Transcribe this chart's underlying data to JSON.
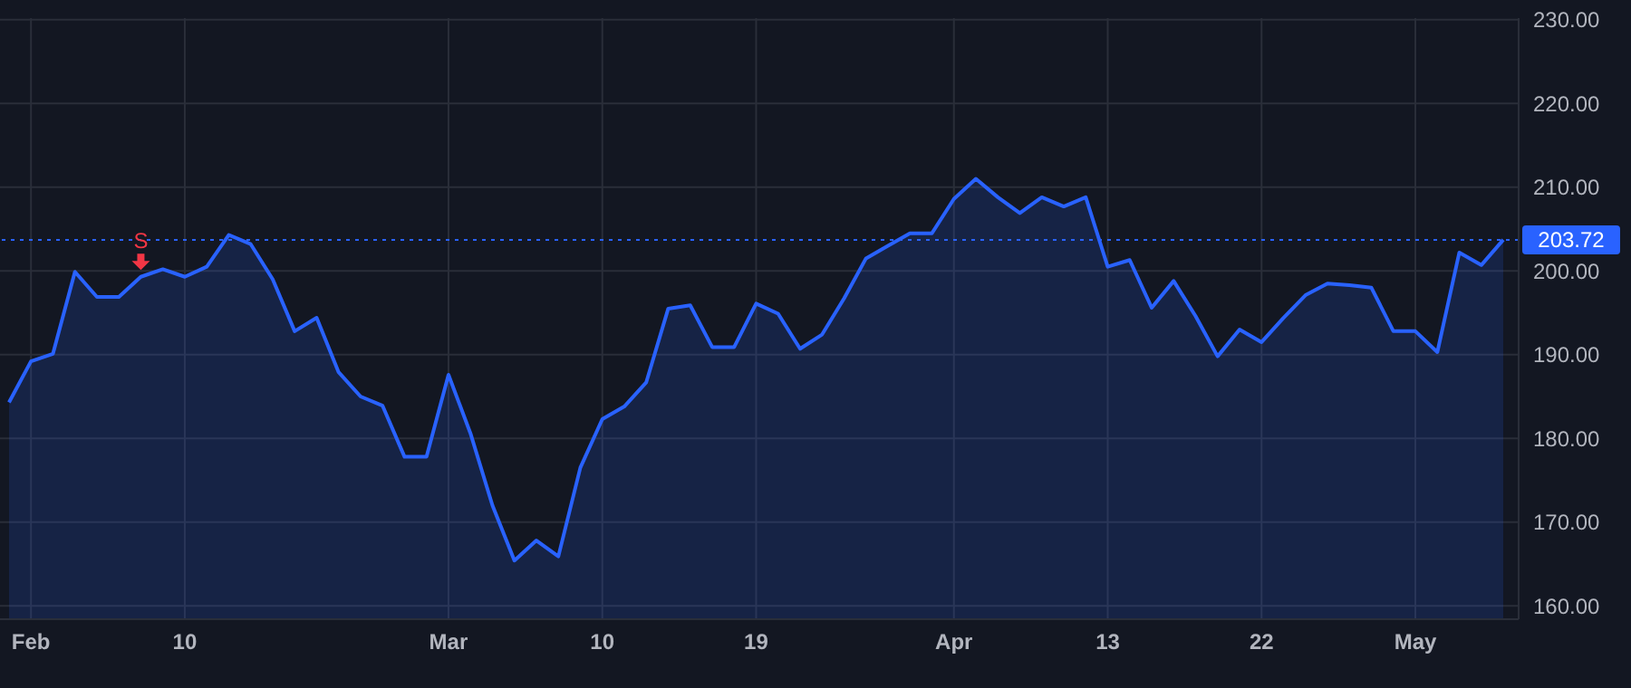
{
  "chart_data": {
    "type": "area",
    "categories": [
      null,
      "Feb",
      null,
      null,
      null,
      null,
      null,
      null,
      "10",
      null,
      null,
      null,
      null,
      null,
      null,
      null,
      null,
      null,
      null,
      null,
      "Mar",
      null,
      null,
      null,
      null,
      null,
      null,
      "10",
      null,
      null,
      null,
      null,
      null,
      null,
      "19",
      null,
      null,
      null,
      null,
      null,
      null,
      null,
      null,
      "Apr",
      null,
      null,
      null,
      null,
      null,
      null,
      "13",
      null,
      null,
      null,
      null,
      null,
      null,
      "22",
      null,
      null,
      null,
      null,
      null,
      null,
      "May",
      null,
      null,
      null,
      null
    ],
    "series": [
      {
        "color": "#2962ff",
        "values": [
          184.3,
          189.2,
          190.1,
          199.9,
          196.9,
          196.9,
          199.3,
          200.2,
          199.3,
          200.5,
          204.3,
          203.2,
          199.0,
          192.8,
          194.4,
          187.9,
          185.0,
          183.9,
          177.8,
          177.8,
          187.6,
          180.6,
          172.0,
          165.4,
          167.8,
          165.9,
          176.5,
          182.3,
          183.8,
          186.7,
          195.5,
          195.9,
          190.9,
          190.9,
          196.1,
          194.9,
          190.7,
          192.4,
          196.7,
          201.5,
          203.0,
          204.5,
          204.5,
          208.6,
          211.0,
          208.8,
          206.9,
          208.8,
          207.7,
          208.8,
          200.5,
          201.3,
          195.6,
          198.8,
          194.6,
          189.8,
          193.0,
          191.5,
          194.4,
          197.1,
          198.5,
          198.3,
          198.0,
          192.8,
          192.8,
          190.3,
          202.2,
          200.7,
          203.72
        ]
      },
      {
        "name": "S",
        "type": "scatter",
        "marker": "triangle",
        "color": "#f23645",
        "values": [
          null,
          null,
          null,
          null,
          null,
          null,
          201.2,
          null,
          null,
          null,
          null,
          null,
          null,
          null,
          null,
          null,
          null,
          null,
          null,
          null,
          null,
          null,
          null,
          null,
          null,
          null,
          null,
          null,
          null,
          null,
          null,
          null,
          null,
          null,
          null,
          null,
          null,
          null,
          null,
          null,
          null,
          null,
          null,
          null,
          null,
          null,
          null,
          null,
          null,
          null,
          null,
          null,
          null,
          null,
          null,
          null,
          null,
          null,
          null,
          null,
          null,
          null,
          null,
          null,
          null,
          null,
          null,
          null,
          null
        ]
      }
    ],
    "ylim": [
      158.4,
      230.2
    ],
    "yticks": [
      {
        "value": 160,
        "label": "160.00"
      },
      {
        "value": 170,
        "label": "170.00"
      },
      {
        "value": 180,
        "label": "180.00"
      },
      {
        "value": 190,
        "label": "190.00"
      },
      {
        "value": 200,
        "label": "200.00"
      },
      {
        "value": 210,
        "label": "210.00"
      },
      {
        "value": 220,
        "label": "220.00"
      },
      {
        "value": 230,
        "label": "230.00"
      }
    ],
    "ref_lines": [
      {
        "axis": "y",
        "value": 203.72,
        "label": "203.72",
        "color": "#2962ff",
        "line_style": "dotted"
      }
    ],
    "grid": true,
    "legend": false,
    "marker": "none",
    "line_style": "solid"
  }
}
